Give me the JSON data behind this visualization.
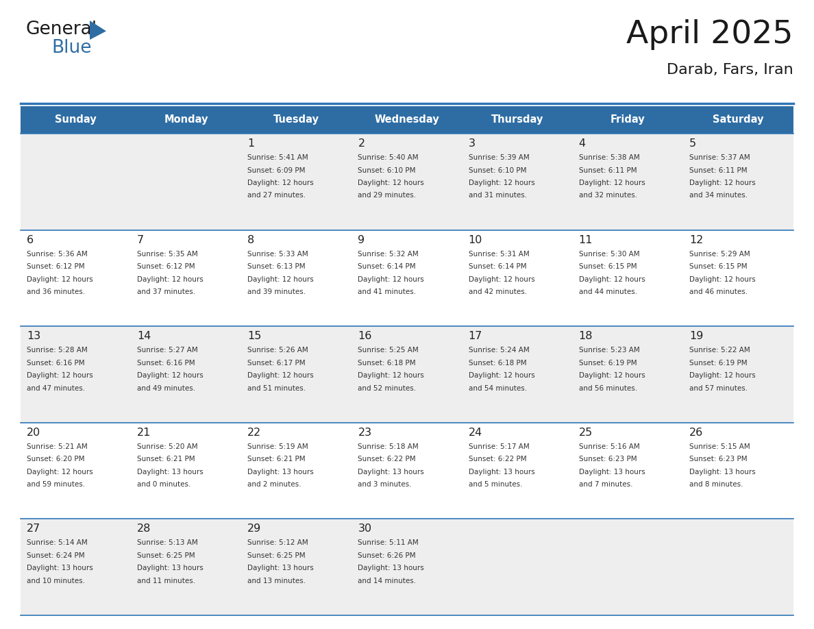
{
  "title": "April 2025",
  "subtitle": "Darab, Fars, Iran",
  "header_bg": "#2E6DA4",
  "header_text_color": "#FFFFFF",
  "cell_bg_odd": "#FFFFFF",
  "cell_bg_even": "#EEEEEE",
  "border_color": "#2E75B6",
  "text_color": "#333333",
  "day_num_color": "#222222",
  "day_names": [
    "Sunday",
    "Monday",
    "Tuesday",
    "Wednesday",
    "Thursday",
    "Friday",
    "Saturday"
  ],
  "weeks": [
    [
      {
        "day": "",
        "sunrise": "",
        "sunset": "",
        "daylight": ""
      },
      {
        "day": "",
        "sunrise": "",
        "sunset": "",
        "daylight": ""
      },
      {
        "day": "1",
        "sunrise": "Sunrise: 5:41 AM",
        "sunset": "Sunset: 6:09 PM",
        "daylight": "Daylight: 12 hours\nand 27 minutes."
      },
      {
        "day": "2",
        "sunrise": "Sunrise: 5:40 AM",
        "sunset": "Sunset: 6:10 PM",
        "daylight": "Daylight: 12 hours\nand 29 minutes."
      },
      {
        "day": "3",
        "sunrise": "Sunrise: 5:39 AM",
        "sunset": "Sunset: 6:10 PM",
        "daylight": "Daylight: 12 hours\nand 31 minutes."
      },
      {
        "day": "4",
        "sunrise": "Sunrise: 5:38 AM",
        "sunset": "Sunset: 6:11 PM",
        "daylight": "Daylight: 12 hours\nand 32 minutes."
      },
      {
        "day": "5",
        "sunrise": "Sunrise: 5:37 AM",
        "sunset": "Sunset: 6:11 PM",
        "daylight": "Daylight: 12 hours\nand 34 minutes."
      }
    ],
    [
      {
        "day": "6",
        "sunrise": "Sunrise: 5:36 AM",
        "sunset": "Sunset: 6:12 PM",
        "daylight": "Daylight: 12 hours\nand 36 minutes."
      },
      {
        "day": "7",
        "sunrise": "Sunrise: 5:35 AM",
        "sunset": "Sunset: 6:12 PM",
        "daylight": "Daylight: 12 hours\nand 37 minutes."
      },
      {
        "day": "8",
        "sunrise": "Sunrise: 5:33 AM",
        "sunset": "Sunset: 6:13 PM",
        "daylight": "Daylight: 12 hours\nand 39 minutes."
      },
      {
        "day": "9",
        "sunrise": "Sunrise: 5:32 AM",
        "sunset": "Sunset: 6:14 PM",
        "daylight": "Daylight: 12 hours\nand 41 minutes."
      },
      {
        "day": "10",
        "sunrise": "Sunrise: 5:31 AM",
        "sunset": "Sunset: 6:14 PM",
        "daylight": "Daylight: 12 hours\nand 42 minutes."
      },
      {
        "day": "11",
        "sunrise": "Sunrise: 5:30 AM",
        "sunset": "Sunset: 6:15 PM",
        "daylight": "Daylight: 12 hours\nand 44 minutes."
      },
      {
        "day": "12",
        "sunrise": "Sunrise: 5:29 AM",
        "sunset": "Sunset: 6:15 PM",
        "daylight": "Daylight: 12 hours\nand 46 minutes."
      }
    ],
    [
      {
        "day": "13",
        "sunrise": "Sunrise: 5:28 AM",
        "sunset": "Sunset: 6:16 PM",
        "daylight": "Daylight: 12 hours\nand 47 minutes."
      },
      {
        "day": "14",
        "sunrise": "Sunrise: 5:27 AM",
        "sunset": "Sunset: 6:16 PM",
        "daylight": "Daylight: 12 hours\nand 49 minutes."
      },
      {
        "day": "15",
        "sunrise": "Sunrise: 5:26 AM",
        "sunset": "Sunset: 6:17 PM",
        "daylight": "Daylight: 12 hours\nand 51 minutes."
      },
      {
        "day": "16",
        "sunrise": "Sunrise: 5:25 AM",
        "sunset": "Sunset: 6:18 PM",
        "daylight": "Daylight: 12 hours\nand 52 minutes."
      },
      {
        "day": "17",
        "sunrise": "Sunrise: 5:24 AM",
        "sunset": "Sunset: 6:18 PM",
        "daylight": "Daylight: 12 hours\nand 54 minutes."
      },
      {
        "day": "18",
        "sunrise": "Sunrise: 5:23 AM",
        "sunset": "Sunset: 6:19 PM",
        "daylight": "Daylight: 12 hours\nand 56 minutes."
      },
      {
        "day": "19",
        "sunrise": "Sunrise: 5:22 AM",
        "sunset": "Sunset: 6:19 PM",
        "daylight": "Daylight: 12 hours\nand 57 minutes."
      }
    ],
    [
      {
        "day": "20",
        "sunrise": "Sunrise: 5:21 AM",
        "sunset": "Sunset: 6:20 PM",
        "daylight": "Daylight: 12 hours\nand 59 minutes."
      },
      {
        "day": "21",
        "sunrise": "Sunrise: 5:20 AM",
        "sunset": "Sunset: 6:21 PM",
        "daylight": "Daylight: 13 hours\nand 0 minutes."
      },
      {
        "day": "22",
        "sunrise": "Sunrise: 5:19 AM",
        "sunset": "Sunset: 6:21 PM",
        "daylight": "Daylight: 13 hours\nand 2 minutes."
      },
      {
        "day": "23",
        "sunrise": "Sunrise: 5:18 AM",
        "sunset": "Sunset: 6:22 PM",
        "daylight": "Daylight: 13 hours\nand 3 minutes."
      },
      {
        "day": "24",
        "sunrise": "Sunrise: 5:17 AM",
        "sunset": "Sunset: 6:22 PM",
        "daylight": "Daylight: 13 hours\nand 5 minutes."
      },
      {
        "day": "25",
        "sunrise": "Sunrise: 5:16 AM",
        "sunset": "Sunset: 6:23 PM",
        "daylight": "Daylight: 13 hours\nand 7 minutes."
      },
      {
        "day": "26",
        "sunrise": "Sunrise: 5:15 AM",
        "sunset": "Sunset: 6:23 PM",
        "daylight": "Daylight: 13 hours\nand 8 minutes."
      }
    ],
    [
      {
        "day": "27",
        "sunrise": "Sunrise: 5:14 AM",
        "sunset": "Sunset: 6:24 PM",
        "daylight": "Daylight: 13 hours\nand 10 minutes."
      },
      {
        "day": "28",
        "sunrise": "Sunrise: 5:13 AM",
        "sunset": "Sunset: 6:25 PM",
        "daylight": "Daylight: 13 hours\nand 11 minutes."
      },
      {
        "day": "29",
        "sunrise": "Sunrise: 5:12 AM",
        "sunset": "Sunset: 6:25 PM",
        "daylight": "Daylight: 13 hours\nand 13 minutes."
      },
      {
        "day": "30",
        "sunrise": "Sunrise: 5:11 AM",
        "sunset": "Sunset: 6:26 PM",
        "daylight": "Daylight: 13 hours\nand 14 minutes."
      },
      {
        "day": "",
        "sunrise": "",
        "sunset": "",
        "daylight": ""
      },
      {
        "day": "",
        "sunrise": "",
        "sunset": "",
        "daylight": ""
      },
      {
        "day": "",
        "sunrise": "",
        "sunset": "",
        "daylight": ""
      }
    ]
  ],
  "logo_text1": "General",
  "logo_text2": "Blue",
  "logo_text1_color": "#1a1a1a",
  "logo_text2_color": "#2E6DA4",
  "logo_triangle_color": "#2E6DA4",
  "fig_width": 11.88,
  "fig_height": 9.18
}
